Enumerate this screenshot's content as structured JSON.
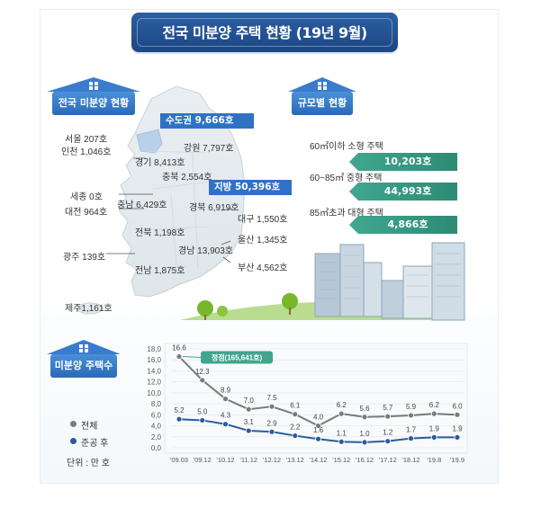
{
  "title": "전국 미분양 주택 현황 (19년 9월)",
  "sections": {
    "national": "전국 미분양 현황",
    "size": "규모별 현황",
    "count": "미분양 주택수"
  },
  "regions": {
    "capital": "수도권 9,666호",
    "provincial": "지방 50,396호",
    "seoul": "서울  207호",
    "incheon": "인천 1,046호",
    "gyeonggi": "경기 8,413호",
    "gangwon": "강원 7,797호",
    "chungbuk": "충북 2,554호",
    "sejong": "세종 0호",
    "chungnam": "충남 6,429호",
    "daejeon": "대전 964호",
    "gyeongbuk": "경북 6,919호",
    "daegu": "대구 1,550호",
    "jeonbuk": "전북 1,198호",
    "ulsan": "울산 1,345호",
    "gwangju": "광주 139호",
    "gyeongnam": "경남 13,903호",
    "jeonnam": "전남 1,875호",
    "busan": "부산 4,562호",
    "jeju": "제주1,161호"
  },
  "sizes": [
    {
      "label": "60㎡이하 소형 주택",
      "value": "10,203호"
    },
    {
      "label": "60~85㎡ 중형 주택",
      "value": "44,993호"
    },
    {
      "label": "85㎡초과 대형 주택",
      "value": "4,866호"
    }
  ],
  "colors": {
    "navy": "#1d4684",
    "blue": "#2f72c4",
    "green": "#2d8a73",
    "total_line": "#7a7a7a",
    "completed_line": "#2b5b9e"
  },
  "legend": {
    "total": "전체",
    "completed": "준공 후",
    "unit": "단위 : 만 호"
  },
  "chart_data": {
    "type": "line",
    "categories": [
      "'09.03",
      "'09.12",
      "'10.12",
      "'11.12",
      "'12.12",
      "'13.12",
      "'14.12",
      "'15.12",
      "'16.12",
      "'17.12",
      "'18.12",
      "'19.8",
      "'19.9"
    ],
    "series": [
      {
        "name": "전체",
        "values": [
          16.6,
          12.3,
          8.9,
          7.0,
          7.5,
          6.1,
          4.0,
          6.2,
          5.6,
          5.7,
          5.9,
          6.2,
          6.0
        ],
        "labels": [
          "16.6",
          "12.3",
          "8.9",
          "7.0",
          "7.5",
          "6.1",
          "4.0",
          "6.2",
          "5.6",
          "5.7",
          "5.9",
          "6.2",
          "6.0"
        ]
      },
      {
        "name": "준공 후",
        "values": [
          5.2,
          5.0,
          4.3,
          3.1,
          2.9,
          2.2,
          1.6,
          1.1,
          1.0,
          1.2,
          1.7,
          1.9,
          1.9
        ],
        "labels": [
          "5.2",
          "5.0",
          "4.3",
          "3.1",
          "2.9",
          "2.2",
          "1.6",
          "1.1",
          "1.0",
          "1.2",
          "1.7",
          "1.9",
          "1.9"
        ]
      }
    ],
    "yticks": [
      "0,0",
      "2,0",
      "4,0",
      "6,0",
      "8,0",
      "10,0",
      "12,0",
      "14,0",
      "16,0",
      "18,0"
    ],
    "ylim": [
      0,
      18
    ],
    "annotation": "정점(165,641호)",
    "grid": true
  }
}
